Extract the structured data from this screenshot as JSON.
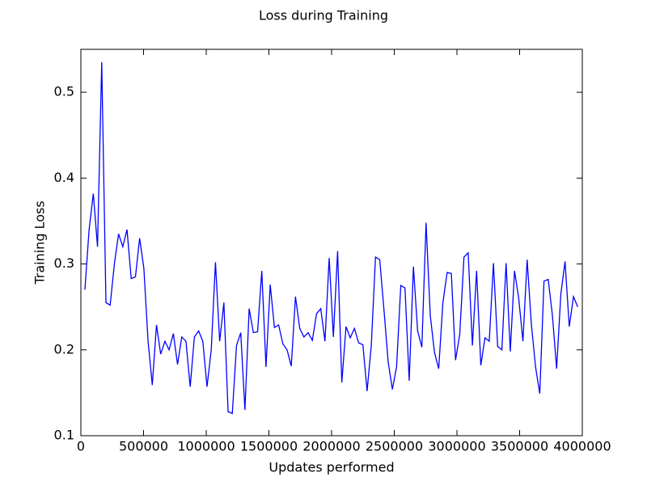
{
  "chart_data": {
    "type": "line",
    "title": "Loss during Training",
    "xlabel": "Updates performed",
    "ylabel": "Training Loss",
    "xlim": [
      0,
      4000000
    ],
    "xticks": [
      0,
      500000,
      1000000,
      1500000,
      2000000,
      2500000,
      3000000,
      3500000,
      4000000
    ],
    "ylim": [
      0.1,
      0.55
    ],
    "yticks": [
      0.1,
      0.2,
      0.3,
      0.4,
      0.5
    ],
    "grid": false,
    "x": [
      32000,
      65600,
      99200,
      132800,
      166400,
      200000,
      233600,
      267200,
      300800,
      334400,
      368000,
      401600,
      435200,
      468800,
      502400,
      536000,
      569600,
      603200,
      636800,
      670400,
      704000,
      737600,
      771200,
      804800,
      838400,
      872000,
      905600,
      939200,
      972800,
      1006400,
      1040000,
      1073600,
      1107200,
      1140800,
      1174400,
      1208000,
      1241600,
      1275200,
      1308800,
      1342400,
      1376000,
      1409600,
      1443200,
      1476800,
      1510400,
      1544000,
      1577600,
      1611200,
      1644800,
      1678400,
      1712000,
      1745600,
      1779200,
      1812800,
      1846400,
      1880000,
      1913600,
      1947200,
      1980800,
      2014400,
      2048000,
      2081600,
      2115200,
      2148800,
      2182400,
      2216000,
      2249600,
      2283200,
      2316800,
      2350400,
      2384000,
      2417600,
      2451200,
      2484800,
      2518400,
      2552000,
      2585600,
      2619200,
      2652800,
      2686400,
      2720000,
      2753600,
      2787200,
      2820800,
      2854400,
      2888000,
      2921600,
      2955200,
      2988800,
      3022400,
      3056000,
      3089600,
      3123200,
      3156800,
      3190400,
      3224000,
      3257600,
      3291200,
      3324800,
      3358400,
      3392000,
      3425600,
      3459200,
      3492800,
      3526400,
      3560000,
      3593600,
      3627200,
      3660800,
      3694400,
      3728000,
      3761600,
      3795200,
      3828800,
      3862400,
      3896000,
      3929600,
      3963200
    ],
    "series": [
      {
        "color": "#0000ff",
        "values": [
          0.27,
          0.34,
          0.382,
          0.32,
          0.535,
          0.255,
          0.252,
          0.3,
          0.335,
          0.32,
          0.34,
          0.283,
          0.285,
          0.33,
          0.295,
          0.21,
          0.159,
          0.229,
          0.195,
          0.21,
          0.2,
          0.219,
          0.183,
          0.215,
          0.21,
          0.157,
          0.215,
          0.222,
          0.21,
          0.157,
          0.2,
          0.302,
          0.21,
          0.255,
          0.128,
          0.126,
          0.205,
          0.22,
          0.13,
          0.248,
          0.22,
          0.221,
          0.292,
          0.18,
          0.276,
          0.226,
          0.229,
          0.207,
          0.2,
          0.181,
          0.262,
          0.225,
          0.215,
          0.22,
          0.211,
          0.242,
          0.248,
          0.21,
          0.307,
          0.215,
          0.315,
          0.162,
          0.227,
          0.214,
          0.225,
          0.208,
          0.206,
          0.152,
          0.205,
          0.308,
          0.305,
          0.247,
          0.186,
          0.154,
          0.18,
          0.275,
          0.272,
          0.164,
          0.297,
          0.222,
          0.203,
          0.348,
          0.24,
          0.197,
          0.178,
          0.255,
          0.29,
          0.289,
          0.188,
          0.218,
          0.308,
          0.313,
          0.205,
          0.292,
          0.182,
          0.214,
          0.21,
          0.301,
          0.204,
          0.2,
          0.301,
          0.198,
          0.292,
          0.26,
          0.21,
          0.305,
          0.23,
          0.18,
          0.149,
          0.28,
          0.282,
          0.24,
          0.178,
          0.265,
          0.303,
          0.227,
          0.262,
          0.25
        ]
      }
    ]
  }
}
